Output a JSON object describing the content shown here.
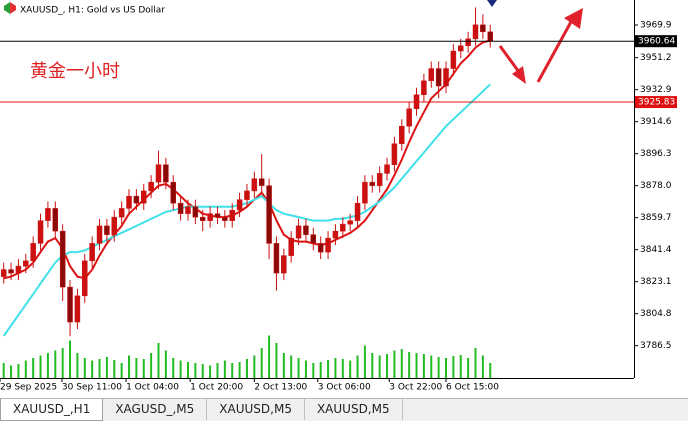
{
  "chart_data": {
    "type": "candlestick",
    "title": "XAUUSD_, H1: Gold vs US Dollar",
    "annotation": "黄金一小时",
    "ylim": [
      3768.0,
      3984.2
    ],
    "yticks": [
      3969.9,
      3951.2,
      3932.9,
      3914.6,
      3896.3,
      {
        "value": 3878.0,
        "label": "3878.0"
      },
      3859.7,
      3841.4,
      3823.1,
      3804.8,
      3786.5
    ],
    "xlim": [
      0,
      86
    ],
    "xticks": [
      {
        "value": 0,
        "label": "29 Sep 2025"
      },
      {
        "value": 8.4,
        "label": "30 Sep 11:00"
      },
      {
        "value": 17.1,
        "label": "1 Oct 04:00"
      },
      {
        "value": 25.8,
        "label": "1 Oct 20:00"
      },
      {
        "value": 34.5,
        "label": "2 Oct 13:00"
      },
      {
        "value": 43.1,
        "label": "3 Oct 06:00"
      },
      {
        "value": 52.8,
        "label": "3 Oct 22:00"
      },
      {
        "value": 60.5,
        "label": "6 Oct 15:00"
      }
    ],
    "candle_color": "#cc1010",
    "open": [
      3826,
      3830,
      3828,
      3832,
      3835,
      3845,
      3858,
      3865,
      3852,
      3820,
      3800,
      3815,
      3835,
      3845,
      3855,
      3850,
      3860,
      3865,
      3872,
      3868,
      3875,
      3880,
      3890,
      3880,
      3868,
      3862,
      3866,
      3860,
      3858,
      3862,
      3860,
      3858,
      3864,
      3870,
      3875,
      3882,
      3878,
      3845,
      3828,
      3838,
      3848,
      3855,
      3850,
      3845,
      3840,
      3848,
      3852,
      3856,
      3858,
      3868,
      3880,
      3878,
      3885,
      3890,
      3902,
      3912,
      3922,
      3930,
      3938,
      3945,
      3935,
      3945,
      3955,
      3958,
      3962,
      3970,
      3966
    ],
    "high": [
      3834,
      3834,
      3836,
      3839,
      3849,
      3862,
      3869,
      3869,
      3856,
      3824,
      3819,
      3839,
      3849,
      3859,
      3859,
      3864,
      3869,
      3876,
      3876,
      3879,
      3884,
      3898,
      3894,
      3884,
      3872,
      3870,
      3870,
      3864,
      3866,
      3866,
      3864,
      3868,
      3874,
      3879,
      3886,
      3896,
      3882,
      3849,
      3842,
      3852,
      3859,
      3859,
      3854,
      3849,
      3852,
      3856,
      3860,
      3862,
      3872,
      3884,
      3884,
      3889,
      3894,
      3906,
      3916,
      3926,
      3934,
      3942,
      3949,
      3949,
      3949,
      3959,
      3962,
      3966,
      3980,
      3976,
      3970
    ],
    "low": [
      3822,
      3824,
      3824,
      3828,
      3831,
      3841,
      3854,
      3848,
      3812,
      3792,
      3796,
      3811,
      3831,
      3841,
      3846,
      3846,
      3856,
      3861,
      3864,
      3864,
      3871,
      3876,
      3876,
      3864,
      3858,
      3858,
      3856,
      3852,
      3854,
      3856,
      3854,
      3854,
      3860,
      3866,
      3871,
      3874,
      3836,
      3818,
      3824,
      3834,
      3844,
      3846,
      3841,
      3836,
      3836,
      3844,
      3848,
      3852,
      3854,
      3864,
      3874,
      3874,
      3881,
      3886,
      3898,
      3908,
      3918,
      3926,
      3934,
      3928,
      3931,
      3941,
      3951,
      3954,
      3958,
      3962,
      3957
    ],
    "close": [
      3830,
      3828,
      3832,
      3835,
      3845,
      3858,
      3865,
      3852,
      3820,
      3800,
      3815,
      3835,
      3845,
      3855,
      3850,
      3860,
      3865,
      3872,
      3868,
      3875,
      3880,
      3890,
      3880,
      3868,
      3862,
      3866,
      3860,
      3858,
      3862,
      3860,
      3858,
      3864,
      3870,
      3875,
      3882,
      3878,
      3845,
      3828,
      3838,
      3848,
      3855,
      3850,
      3845,
      3840,
      3848,
      3852,
      3856,
      3858,
      3868,
      3880,
      3878,
      3885,
      3890,
      3902,
      3912,
      3922,
      3930,
      3938,
      3945,
      3935,
      3945,
      3955,
      3958,
      3962,
      3970,
      3966,
      3960.64
    ],
    "series": [
      {
        "color": "#dd1111",
        "values": [
          3825,
          3826,
          3828,
          3830,
          3834,
          3840,
          3846,
          3848,
          3842,
          3832,
          3826,
          3825,
          3830,
          3838,
          3845,
          3850,
          3855,
          3862,
          3866,
          3870,
          3874,
          3878,
          3879,
          3876,
          3872,
          3868,
          3865,
          3862,
          3861,
          3860,
          3860,
          3861,
          3863,
          3866,
          3870,
          3874,
          3868,
          3858,
          3850,
          3847,
          3846,
          3846,
          3845,
          3844,
          3845,
          3847,
          3849,
          3851,
          3854,
          3858,
          3864,
          3870,
          3876,
          3884,
          3893,
          3903,
          3912,
          3920,
          3928,
          3932,
          3936,
          3942,
          3948,
          3952,
          3957,
          3960,
          3961
        ]
      },
      {
        "color": "#40e0e8",
        "values": [
          3792,
          3798,
          3804,
          3810,
          3816,
          3822,
          3828,
          3834,
          3838,
          3840,
          3840,
          3841,
          3843,
          3845,
          3847,
          3849,
          3851,
          3853,
          3855,
          3857,
          3859,
          3861,
          3863,
          3864,
          3865,
          3866,
          3866,
          3866,
          3866,
          3866,
          3866,
          3866,
          3867,
          3868,
          3870,
          3872,
          3868,
          3864,
          3862,
          3861,
          3860,
          3859,
          3858,
          3858,
          3858,
          3859,
          3859,
          3860,
          3861,
          3863,
          3866,
          3869,
          3873,
          3877,
          3882,
          3887,
          3892,
          3897,
          3902,
          3907,
          3912,
          3916,
          3920,
          3924,
          3928,
          3932,
          3936
        ]
      }
    ],
    "volume_color": "#22bb22",
    "volume_ylim": [
      0,
      100
    ],
    "volume": [
      30,
      25,
      28,
      35,
      40,
      45,
      50,
      55,
      60,
      75,
      50,
      40,
      35,
      38,
      42,
      36,
      30,
      45,
      40,
      38,
      50,
      70,
      55,
      40,
      35,
      32,
      30,
      28,
      25,
      30,
      35,
      30,
      32,
      38,
      45,
      60,
      85,
      70,
      50,
      45,
      40,
      35,
      30,
      32,
      36,
      40,
      38,
      35,
      45,
      65,
      50,
      45,
      48,
      55,
      58,
      52,
      50,
      48,
      45,
      42,
      40,
      44,
      46,
      40,
      60,
      45,
      30
    ],
    "price_lines": [
      {
        "value": 3960.64,
        "color": "#000000"
      },
      {
        "value": 3925.83,
        "color": "#e01010"
      }
    ]
  },
  "tabs": [
    "XAUUSD_,H1",
    "XAGUSD_,M5",
    "XAUUSD,M5",
    "XAUUSD,M5"
  ]
}
